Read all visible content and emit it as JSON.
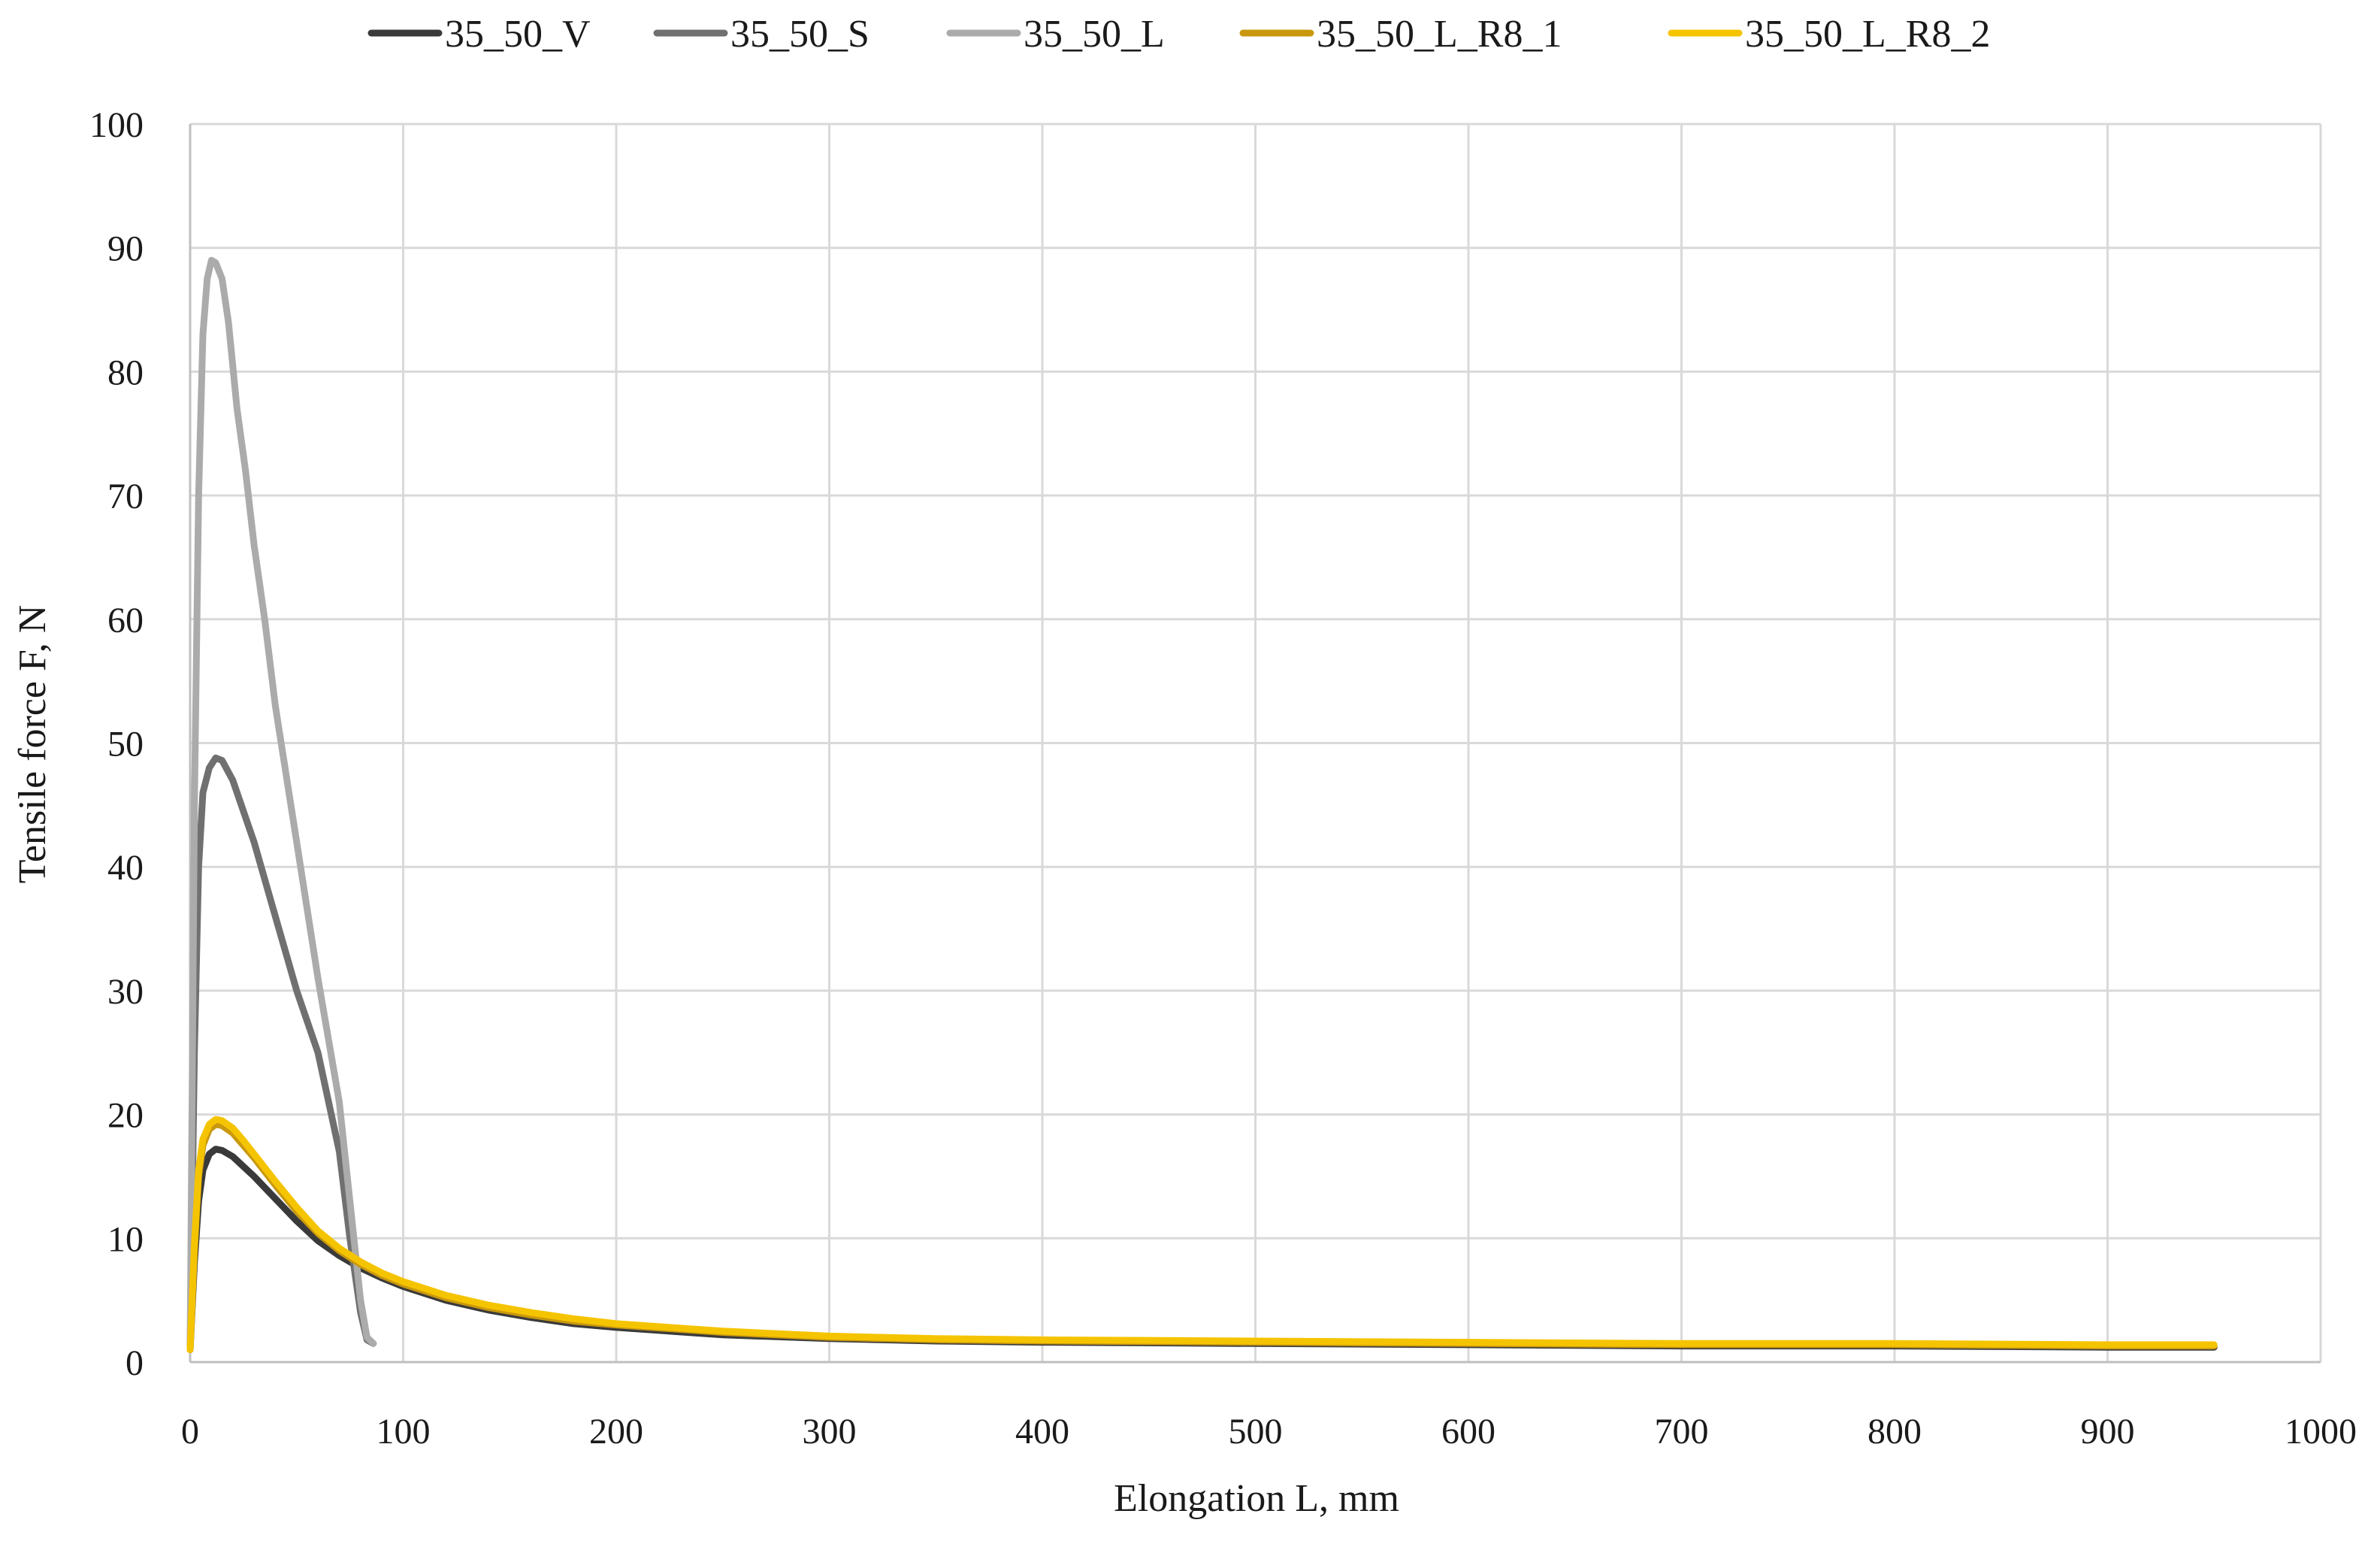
{
  "chart_data": {
    "type": "line",
    "title": "",
    "xlabel": "Elongation L, mm",
    "ylabel": "Tensile force F, N",
    "xlim": [
      0,
      1000
    ],
    "ylim": [
      0,
      100
    ],
    "xticks": [
      "0",
      "100",
      "200",
      "300",
      "400",
      "500",
      "600",
      "700",
      "800",
      "900",
      "1000"
    ],
    "yticks": [
      "0",
      "10",
      "20",
      "30",
      "40",
      "50",
      "60",
      "70",
      "80",
      "90",
      "100"
    ],
    "grid": true,
    "legend_position": "top",
    "series": [
      {
        "name": "35_50_V",
        "color": "#3a3a3a",
        "x": [
          0,
          2,
          4,
          6,
          9,
          12,
          15,
          20,
          25,
          30,
          40,
          50,
          60,
          70,
          80,
          90,
          100,
          120,
          140,
          160,
          180,
          200,
          250,
          300,
          350,
          400,
          500,
          600,
          700,
          800,
          900,
          950
        ],
        "y": [
          1,
          8,
          13,
          15.5,
          16.8,
          17.2,
          17.1,
          16.6,
          15.8,
          15,
          13.2,
          11.4,
          9.8,
          8.6,
          7.6,
          6.8,
          6.1,
          5.0,
          4.2,
          3.6,
          3.1,
          2.8,
          2.2,
          1.9,
          1.7,
          1.6,
          1.5,
          1.4,
          1.3,
          1.3,
          1.2,
          1.2
        ]
      },
      {
        "name": "35_50_S",
        "color": "#707070",
        "x": [
          0,
          2,
          4,
          6,
          9,
          12,
          15,
          20,
          25,
          30,
          40,
          50,
          60,
          70,
          75,
          80,
          83,
          86
        ],
        "y": [
          1,
          25,
          40,
          46,
          48,
          48.8,
          48.6,
          47,
          44.5,
          42,
          36,
          30,
          25,
          17,
          10,
          4,
          1.8,
          1.5
        ]
      },
      {
        "name": "35_50_L",
        "color": "#ababab",
        "x": [
          0,
          2,
          4,
          6,
          8,
          10,
          12,
          15,
          18,
          22,
          26,
          30,
          35,
          40,
          50,
          60,
          70,
          75,
          80,
          83,
          86
        ],
        "y": [
          1,
          45,
          70,
          83,
          87.5,
          89,
          88.8,
          87.5,
          84,
          77,
          72,
          66,
          60,
          53,
          42,
          31,
          21,
          13,
          5,
          2,
          1.5
        ]
      },
      {
        "name": "35_50_L_R8_1",
        "color": "#c9980e",
        "x": [
          0,
          2,
          4,
          6,
          9,
          12,
          15,
          20,
          25,
          30,
          40,
          50,
          60,
          70,
          80,
          90,
          100,
          120,
          140,
          160,
          180,
          200,
          250,
          300,
          350,
          400,
          500,
          600,
          700,
          800,
          900,
          950
        ],
        "y": [
          1,
          9,
          15,
          17.5,
          18.8,
          19.2,
          19.1,
          18.5,
          17.5,
          16.5,
          14.3,
          12.2,
          10.4,
          9.0,
          7.9,
          7.0,
          6.3,
          5.2,
          4.4,
          3.8,
          3.3,
          3.0,
          2.4,
          2.0,
          1.8,
          1.7,
          1.6,
          1.5,
          1.4,
          1.4,
          1.3,
          1.3
        ]
      },
      {
        "name": "35_50_L_R8_2",
        "color": "#f5c400",
        "x": [
          0,
          2,
          4,
          6,
          9,
          12,
          15,
          20,
          25,
          30,
          40,
          50,
          60,
          70,
          80,
          90,
          100,
          120,
          140,
          160,
          180,
          200,
          250,
          300,
          350,
          400,
          500,
          600,
          700,
          800,
          900,
          950
        ],
        "y": [
          1,
          9.5,
          15.5,
          18,
          19.2,
          19.6,
          19.5,
          18.9,
          17.9,
          16.8,
          14.6,
          12.5,
          10.6,
          9.2,
          8.1,
          7.2,
          6.5,
          5.4,
          4.6,
          4.0,
          3.5,
          3.1,
          2.5,
          2.1,
          1.9,
          1.8,
          1.7,
          1.6,
          1.5,
          1.5,
          1.4,
          1.4
        ]
      }
    ]
  }
}
